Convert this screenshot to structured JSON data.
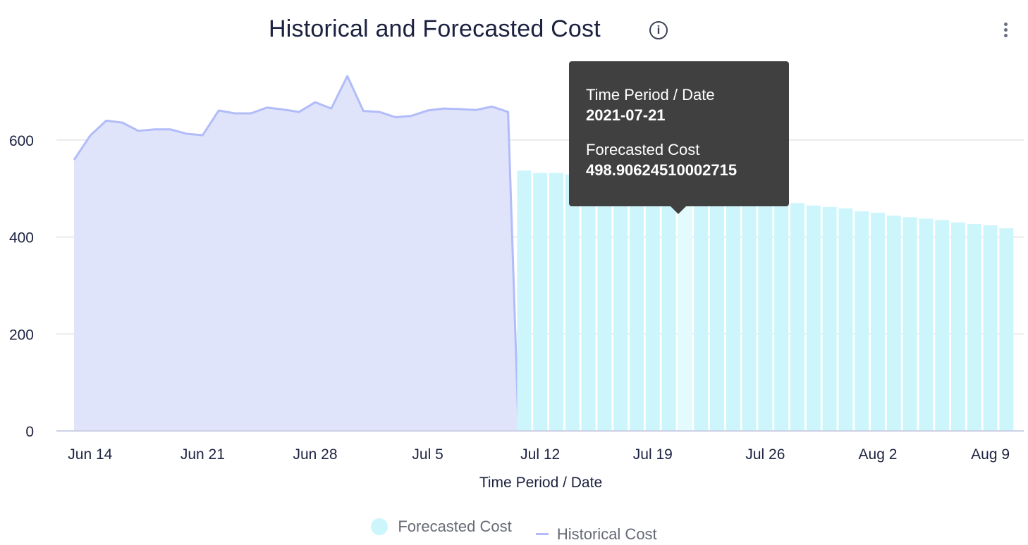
{
  "chart_data": {
    "type": "bar+area",
    "title": "Historical and Forecasted Cost",
    "xlabel": "Time Period / Date",
    "ylabel": "",
    "ylim": [
      0,
      750
    ],
    "y_ticks": [
      0,
      200,
      400,
      600
    ],
    "x_ticks": [
      {
        "date": "2021-06-14",
        "label": "Jun 14"
      },
      {
        "date": "2021-06-21",
        "label": "Jun 21"
      },
      {
        "date": "2021-06-28",
        "label": "Jun 28"
      },
      {
        "date": "2021-07-05",
        "label": "Jul 5"
      },
      {
        "date": "2021-07-12",
        "label": "Jul 12"
      },
      {
        "date": "2021-07-19",
        "label": "Jul 19"
      },
      {
        "date": "2021-07-26",
        "label": "Jul 26"
      },
      {
        "date": "2021-08-02",
        "label": "Aug 2"
      },
      {
        "date": "2021-08-09",
        "label": "Aug 9"
      }
    ],
    "grid": "horizontal",
    "legend_position": "bottom",
    "series": [
      {
        "name": "Historical Cost",
        "type": "area",
        "color": "#b1bcf9",
        "fill": "#e0e4fb",
        "x": [
          "2021-06-13",
          "2021-06-14",
          "2021-06-15",
          "2021-06-16",
          "2021-06-17",
          "2021-06-18",
          "2021-06-19",
          "2021-06-20",
          "2021-06-21",
          "2021-06-22",
          "2021-06-23",
          "2021-06-24",
          "2021-06-25",
          "2021-06-26",
          "2021-06-27",
          "2021-06-28",
          "2021-06-29",
          "2021-06-30",
          "2021-07-01",
          "2021-07-02",
          "2021-07-03",
          "2021-07-04",
          "2021-07-05",
          "2021-07-06",
          "2021-07-07",
          "2021-07-08",
          "2021-07-09",
          "2021-07-10",
          "2021-07-11"
        ],
        "values": [
          559,
          609,
          640,
          636,
          619,
          622,
          622,
          613,
          610,
          661,
          655,
          655,
          667,
          663,
          658,
          678,
          665,
          732,
          660,
          658,
          647,
          650,
          661,
          665,
          664,
          662,
          669,
          658,
          0
        ]
      },
      {
        "name": "Forecasted Cost",
        "type": "bar",
        "color": "#ccf6fb",
        "highlight": "#e3fbfd",
        "x": [
          "2021-07-11",
          "2021-07-12",
          "2021-07-13",
          "2021-07-14",
          "2021-07-15",
          "2021-07-16",
          "2021-07-17",
          "2021-07-18",
          "2021-07-19",
          "2021-07-20",
          "2021-07-21",
          "2021-07-22",
          "2021-07-23",
          "2021-07-24",
          "2021-07-25",
          "2021-07-26",
          "2021-07-27",
          "2021-07-28",
          "2021-07-29",
          "2021-07-30",
          "2021-07-31",
          "2021-08-01",
          "2021-08-02",
          "2021-08-03",
          "2021-08-04",
          "2021-08-05",
          "2021-08-06",
          "2021-08-07",
          "2021-08-08",
          "2021-08-09",
          "2021-08-10"
        ],
        "values": [
          537,
          532,
          532,
          529,
          523,
          517,
          514,
          508,
          505,
          502,
          498.90624510002715,
          493,
          490,
          485,
          482,
          479,
          473,
          470,
          465,
          462,
          459,
          453,
          450,
          444,
          441,
          438,
          435,
          430,
          427,
          424,
          418
        ]
      }
    ]
  },
  "tooltip": {
    "label1": "Time Period / Date",
    "value1": "2021-07-21",
    "label2": "Forecasted Cost",
    "value2": "498.90624510002715",
    "active_date": "2021-07-21"
  },
  "legend": {
    "forecasted": "Forecasted Cost",
    "historical": "Historical Cost"
  },
  "icons": {
    "info": "info-icon",
    "menu": "kebab-menu-icon"
  },
  "info_glyph": "i"
}
